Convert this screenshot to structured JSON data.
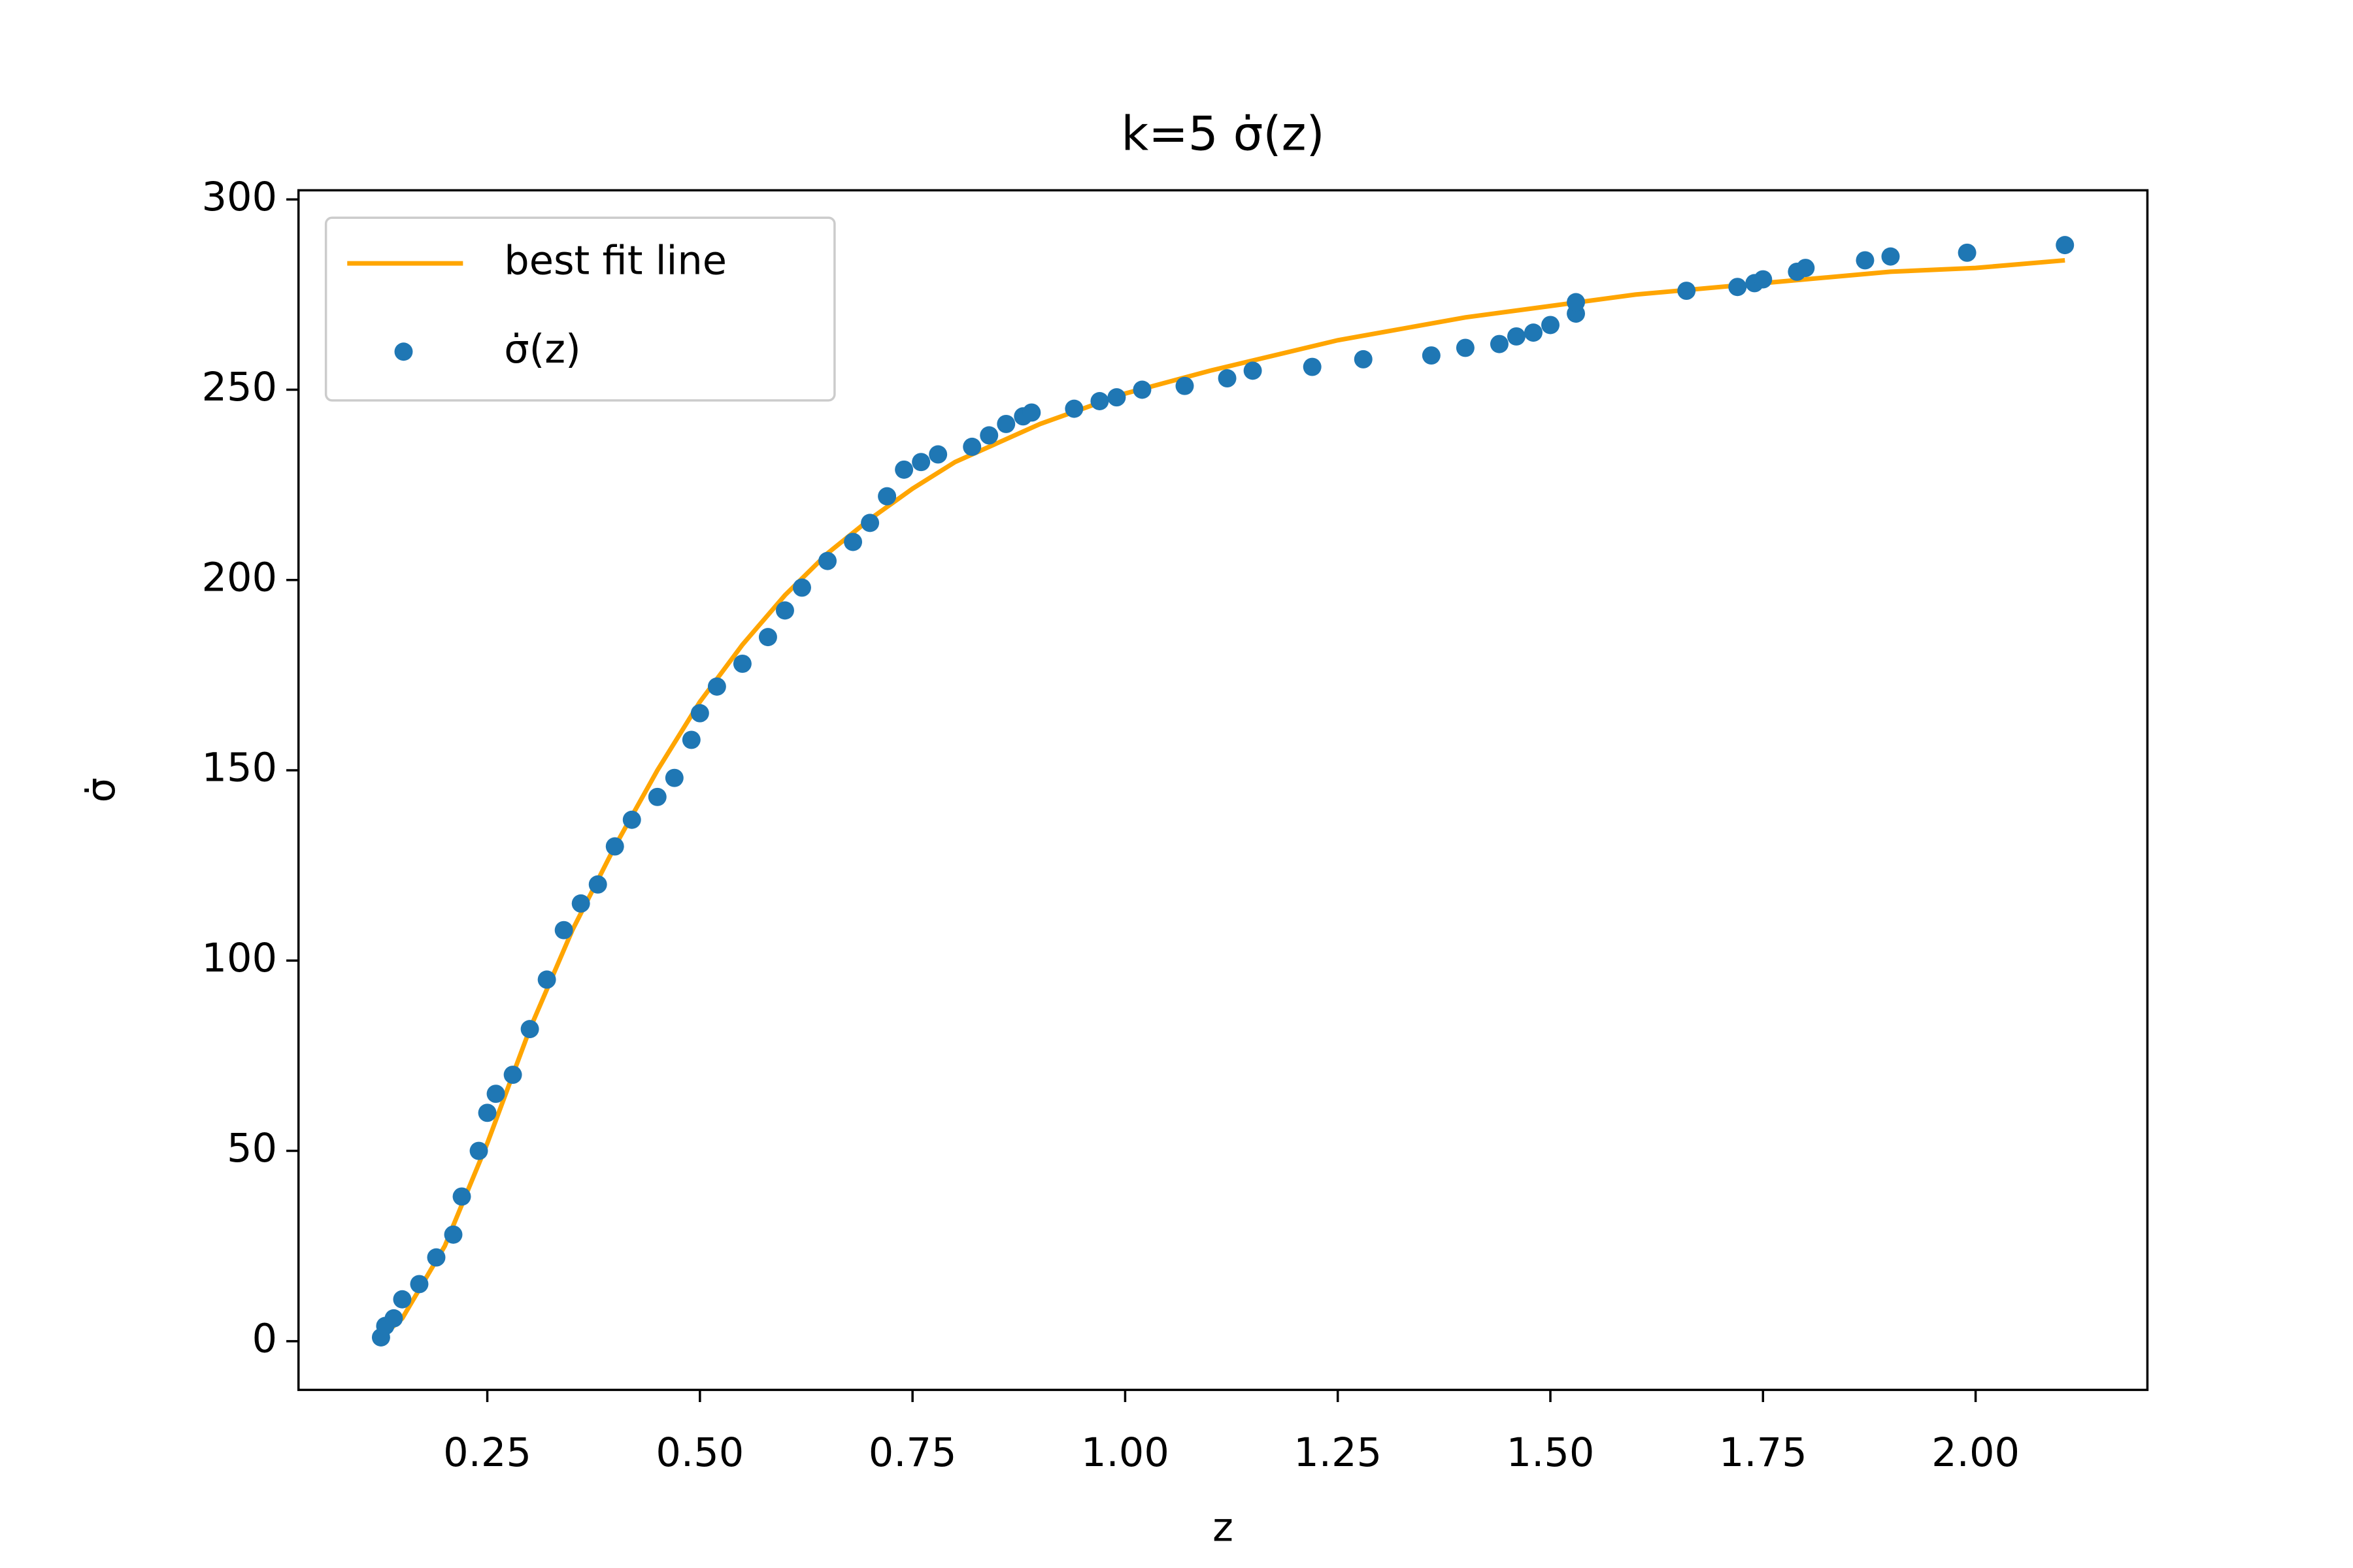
{
  "chart_data": {
    "type": "scatter",
    "title": "k=5 σ̇(z)",
    "x_label": "z",
    "y_label": "σ̇",
    "xlim": [
      0.028,
      2.202
    ],
    "ylim": [
      -12.8,
      302.4
    ],
    "xticks": [
      0.25,
      {
        "value": 0.5,
        "label": "0.50"
      },
      0.75,
      {
        "value": 1.0,
        "label": "1.00"
      },
      1.25,
      {
        "value": 1.5,
        "label": "1.50"
      },
      1.75,
      {
        "value": 2.0,
        "label": "2.00"
      }
    ],
    "yticks": [
      0,
      50,
      100,
      150,
      200,
      250,
      300
    ],
    "legend": "upper left",
    "series": [
      {
        "name": "best fit line",
        "type": "line",
        "color": "#ffa500",
        "x": [
          0.125,
          0.15,
          0.2,
          0.25,
          0.3,
          0.35,
          0.4,
          0.45,
          0.5,
          0.55,
          0.6,
          0.65,
          0.7,
          0.75,
          0.8,
          0.9,
          1.0,
          1.1,
          1.25,
          1.4,
          1.5,
          1.6,
          1.75,
          1.9,
          2.0,
          2.105
        ],
        "values": [
          1,
          6,
          25,
          52,
          82,
          108,
          130,
          150,
          168,
          183,
          196,
          207,
          216,
          224,
          231,
          241,
          249,
          255,
          263,
          269,
          272,
          275,
          278,
          281,
          282,
          284
        ]
      },
      {
        "name": "σ̇(z)",
        "type": "scatter",
        "color": "#1f77b4",
        "x": [
          0.125,
          0.13,
          0.14,
          0.15,
          0.17,
          0.19,
          0.21,
          0.22,
          0.24,
          0.25,
          0.26,
          0.28,
          0.3,
          0.32,
          0.34,
          0.36,
          0.38,
          0.4,
          0.42,
          0.45,
          0.47,
          0.49,
          0.5,
          0.52,
          0.55,
          0.58,
          0.6,
          0.62,
          0.65,
          0.68,
          0.7,
          0.72,
          0.74,
          0.76,
          0.78,
          0.82,
          0.84,
          0.86,
          0.88,
          0.89,
          0.94,
          0.97,
          0.99,
          1.02,
          1.07,
          1.12,
          1.15,
          1.22,
          1.28,
          1.36,
          1.4,
          1.44,
          1.46,
          1.48,
          1.5,
          1.53,
          1.53,
          1.66,
          1.72,
          1.74,
          1.75,
          1.79,
          1.8,
          1.87,
          1.9,
          1.99,
          2.105
        ],
        "values": [
          1,
          4,
          6,
          11,
          15,
          22,
          28,
          38,
          50,
          60,
          65,
          70,
          82,
          95,
          108,
          115,
          120,
          130,
          137,
          143,
          148,
          158,
          165,
          172,
          178,
          185,
          192,
          198,
          205,
          210,
          215,
          222,
          229,
          231,
          233,
          235,
          238,
          241,
          243,
          244,
          245,
          247,
          248,
          250,
          251,
          253,
          255,
          256,
          258,
          259,
          261,
          262,
          264,
          265,
          267,
          270,
          273,
          276,
          277,
          278,
          279,
          281,
          282,
          284,
          285,
          286,
          288
        ]
      }
    ]
  }
}
